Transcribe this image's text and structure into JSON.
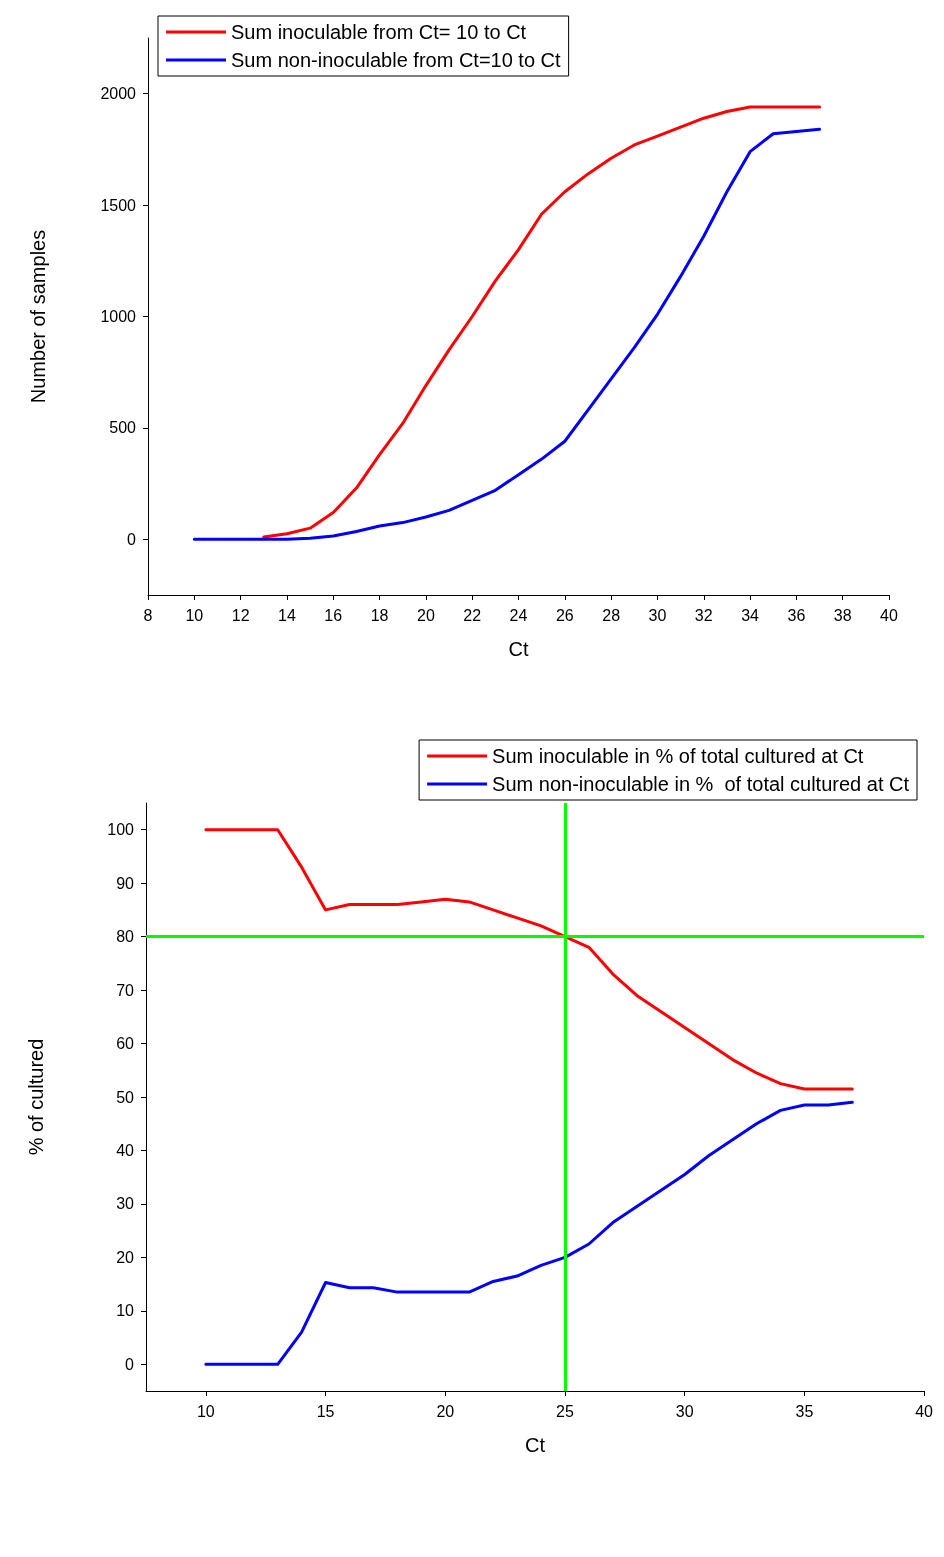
{
  "chart_data": [
    {
      "type": "line",
      "xlabel": "Ct",
      "ylabel": "Number of samples",
      "xlim": [
        8,
        40
      ],
      "xticks": [
        8,
        10,
        12,
        14,
        16,
        18,
        20,
        22,
        24,
        26,
        28,
        30,
        32,
        34,
        36,
        38,
        40
      ],
      "ylim": [
        -250,
        2250
      ],
      "yticks": [
        0,
        500,
        1000,
        1500,
        2000
      ],
      "grid": false,
      "legend": "top left",
      "marker": "none",
      "line_style": "solid",
      "series": [
        {
          "name": "Sum inoculable from Ct= 10 to Ct",
          "color": "#ff0000",
          "x": [
            13,
            14,
            15,
            16,
            17,
            18,
            19,
            20,
            21,
            22,
            23,
            24,
            25,
            26,
            27,
            28,
            29,
            30,
            31,
            32,
            33,
            34,
            35,
            36,
            37
          ],
          "values": [
            10,
            25,
            50,
            120,
            230,
            380,
            520,
            690,
            850,
            1000,
            1160,
            1300,
            1460,
            1560,
            1640,
            1710,
            1770,
            1810,
            1850,
            1890,
            1920,
            1940,
            1940,
            1940,
            1940
          ]
        },
        {
          "name": "Sum non-inoculable from Ct=10 to Ct",
          "color": "#0000ff",
          "x": [
            10,
            11,
            12,
            13,
            14,
            15,
            16,
            17,
            18,
            19,
            20,
            21,
            22,
            23,
            24,
            25,
            26,
            27,
            28,
            29,
            30,
            31,
            32,
            33,
            34,
            35,
            36,
            37
          ],
          "values": [
            0,
            0,
            0,
            0,
            0,
            5,
            15,
            35,
            60,
            75,
            100,
            130,
            175,
            220,
            290,
            360,
            440,
            580,
            720,
            860,
            1010,
            1180,
            1360,
            1560,
            1740,
            1820,
            1830,
            1840
          ]
        }
      ]
    },
    {
      "type": "line",
      "xlabel": "Ct",
      "ylabel": "% of cultured",
      "xlim": [
        7.5,
        40
      ],
      "xticks": [
        10,
        15,
        20,
        25,
        30,
        35,
        40
      ],
      "ylim": [
        -5,
        105
      ],
      "yticks": [
        0,
        10,
        20,
        30,
        40,
        50,
        60,
        70,
        80,
        90,
        100
      ],
      "grid": false,
      "legend": "top right",
      "marker": "none",
      "line_style": "solid",
      "ref_lines": [
        {
          "axis": "y",
          "value": 80,
          "color": "#00ff00"
        },
        {
          "axis": "x",
          "value": 25,
          "color": "#00ff00"
        }
      ],
      "series": [
        {
          "name": "Sum inoculable in % of total cultured at Ct",
          "color": "#ff0000",
          "x": [
            10,
            11,
            12,
            13,
            14,
            15,
            16,
            17,
            18,
            19,
            20,
            21,
            22,
            23,
            24,
            25,
            26,
            27,
            28,
            29,
            30,
            31,
            32,
            33,
            34,
            35,
            36,
            37
          ],
          "values": [
            100,
            100,
            100,
            100,
            93,
            85,
            86,
            86,
            86,
            86.5,
            87,
            86.5,
            85,
            83.5,
            82,
            80,
            78,
            73,
            69,
            66,
            63,
            60,
            57,
            54.5,
            52.5,
            51.5,
            51.5,
            51.5
          ]
        },
        {
          "name": "Sum non-inoculable in %  of total cultured at Ct",
          "color": "#0000ff",
          "x": [
            10,
            11,
            12,
            13,
            14,
            15,
            16,
            17,
            18,
            19,
            20,
            21,
            22,
            23,
            24,
            25,
            26,
            27,
            28,
            29,
            30,
            31,
            32,
            33,
            34,
            35,
            36,
            37
          ],
          "values": [
            0,
            0,
            0,
            0,
            6,
            15.3,
            14.3,
            14.3,
            13.5,
            13.5,
            13.5,
            13.5,
            15.5,
            16.5,
            18.5,
            20,
            22.5,
            26.5,
            29.5,
            32.5,
            35.5,
            39,
            42,
            45,
            47.5,
            48.5,
            48.5,
            49
          ]
        }
      ]
    }
  ]
}
